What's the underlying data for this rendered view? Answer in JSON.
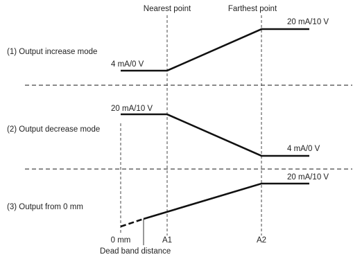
{
  "labels": {
    "nearest_point": "Nearest point",
    "farthest_point": "Farthest point",
    "mode1_title": "(1) Output increase mode",
    "mode2_title": "(2) Output decrease mode",
    "mode3_title": "(3) Output from 0 mm",
    "mode1_low": "4 mA/0 V",
    "mode1_high": "20 mA/10 V",
    "mode2_high": "20 mA/10 V",
    "mode2_low": "4 mA/0 V",
    "mode3_high": "20 mA/10 V",
    "axis_0mm": "0 mm",
    "axis_a1": "A1",
    "axis_a2": "A2",
    "dead_band": "Dead band distance"
  }
}
